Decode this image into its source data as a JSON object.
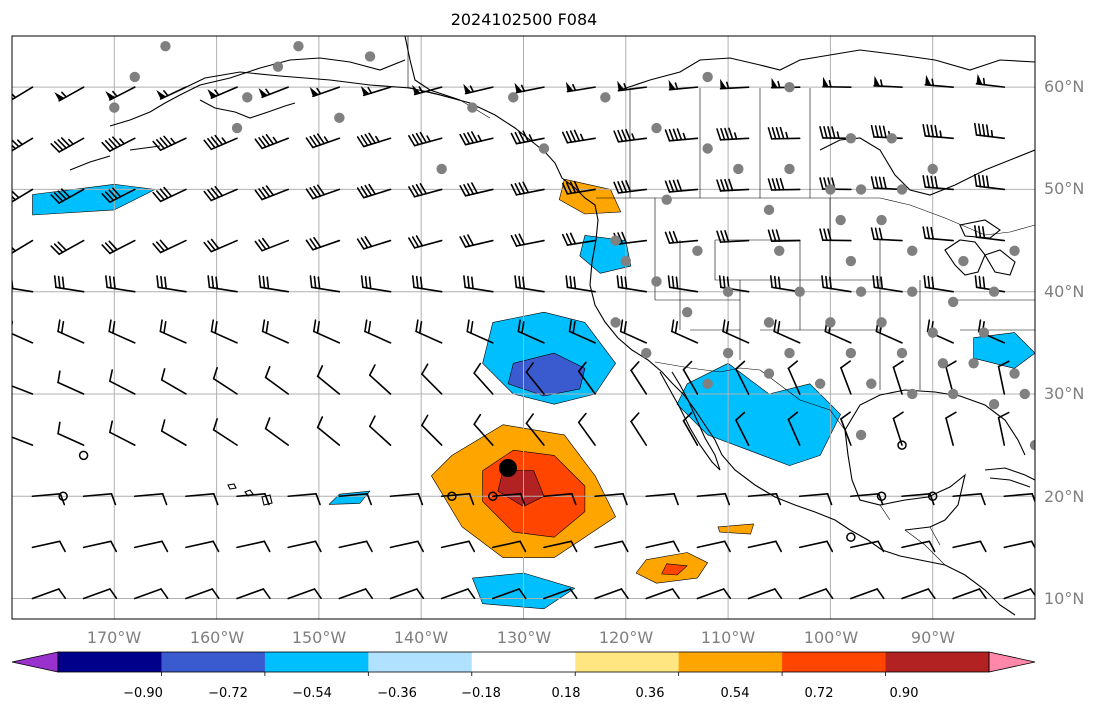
{
  "title": "2024102500 F084",
  "map": {
    "lon_range": [
      -180,
      -80
    ],
    "lat_range": [
      8,
      65
    ],
    "longitude_labels": [
      "170°W",
      "160°W",
      "150°W",
      "140°W",
      "130°W",
      "120°W",
      "110°W",
      "100°W",
      "90°W"
    ],
    "longitude_values": [
      -170,
      -160,
      -150,
      -140,
      -130,
      -120,
      -110,
      -100,
      -90
    ],
    "latitude_labels": [
      "10°N",
      "20°N",
      "30°N",
      "40°N",
      "50°N",
      "60°N"
    ],
    "latitude_values": [
      10,
      20,
      30,
      40,
      50,
      60
    ],
    "gridlines": true,
    "latitude_label_side": "right",
    "longitude_label_side": "bottom"
  },
  "colorbar": {
    "orientation": "horizontal",
    "extend": "both",
    "levels": [
      -0.9,
      -0.72,
      -0.54,
      -0.36,
      -0.18,
      0.18,
      0.36,
      0.54,
      0.72,
      0.9
    ],
    "tick_labels": [
      "−0.90",
      "−0.72",
      "−0.54",
      "−0.36",
      "−0.18",
      "0.18",
      "0.36",
      "0.54",
      "0.72",
      "0.90"
    ],
    "colors": [
      "#9932cc",
      "#00008b",
      "#3a5bd0",
      "#00bfff",
      "#b0e2ff",
      "#ffffff",
      "#ffe680",
      "#ffa500",
      "#ff4500",
      "#b22222",
      "#ff88aa"
    ]
  },
  "chart_data": {
    "type": "heatmap",
    "title": "2024102500 F084",
    "filled_regions": [
      {
        "level": 0.36,
        "lon": [
          -137,
          -132,
          -126,
          -123,
          -121,
          -124,
          -127,
          -132,
          -136,
          -139
        ],
        "lat": [
          24,
          27,
          26,
          22,
          18,
          16,
          14,
          14,
          17,
          22
        ]
      },
      {
        "level": 0.54,
        "lon": [
          -134,
          -131,
          -127,
          -124,
          -124,
          -127,
          -131,
          -134
        ],
        "lat": [
          22.5,
          24.5,
          24,
          21,
          18.5,
          16,
          16.5,
          19.5
        ]
      },
      {
        "level": 0.72,
        "lon": [
          -132,
          -129,
          -128,
          -130,
          -132.5
        ],
        "lat": [
          22.5,
          22.5,
          20,
          19,
          20.5
        ]
      },
      {
        "level": 0.36,
        "lon": [
          -118,
          -114,
          -112,
          -113,
          -117,
          -119
        ],
        "lat": [
          13.8,
          14.5,
          13.5,
          12,
          11.5,
          12.5
        ]
      },
      {
        "level": 0.54,
        "lon": [
          -116,
          -114,
          -115,
          -116.5
        ],
        "lat": [
          13.4,
          13.2,
          12.3,
          12.4
        ]
      },
      {
        "level": 0.36,
        "lon": [
          -126,
          -121.5,
          -120.5,
          -124,
          -126.5
        ],
        "lat": [
          51,
          50,
          47.8,
          47.6,
          49
        ]
      },
      {
        "level": 0.36,
        "lon": [
          -111,
          -107.5,
          -107.8,
          -110.8
        ],
        "lat": [
          17,
          17.3,
          16.3,
          16.5
        ]
      },
      {
        "level": -0.36,
        "lon": [
          -133,
          -128,
          -124,
          -121,
          -123,
          -127,
          -131,
          -134
        ],
        "lat": [
          37,
          38,
          37,
          33,
          30,
          29,
          30,
          33
        ]
      },
      {
        "level": -0.54,
        "lon": [
          -131,
          -127,
          -124,
          -124.5,
          -128,
          -131.5
        ],
        "lat": [
          33,
          34,
          32.5,
          30.5,
          29.8,
          31
        ]
      },
      {
        "level": -0.36,
        "lon": [
          -124,
          -120,
          -119.5,
          -122.5,
          -124.5
        ],
        "lat": [
          45.5,
          45,
          42.5,
          41.8,
          43.5
        ]
      },
      {
        "level": -0.36,
        "lon": [
          -114,
          -110,
          -106,
          -102,
          -99,
          -101,
          -104,
          -108,
          -112,
          -115
        ],
        "lat": [
          31,
          33,
          30,
          31,
          28,
          24,
          23,
          24.5,
          26,
          29
        ]
      },
      {
        "level": -0.36,
        "lon": [
          -178,
          -170,
          -166,
          -170,
          -178
        ],
        "lat": [
          49.5,
          50.5,
          50,
          48,
          47.5
        ]
      },
      {
        "level": -0.36,
        "lon": [
          -135,
          -130,
          -125,
          -128,
          -134
        ],
        "lat": [
          12,
          12.5,
          11,
          9,
          9.5
        ]
      },
      {
        "level": -0.36,
        "lon": [
          -86,
          -82,
          -80,
          -82,
          -86
        ],
        "lat": [
          35.5,
          36,
          34,
          32.5,
          33.5
        ]
      },
      {
        "level": -0.36,
        "lon": [
          -148,
          -145,
          -146,
          -149
        ],
        "lat": [
          20.2,
          20.5,
          19.3,
          19.2
        ]
      }
    ],
    "wind_barbs_present": true,
    "stations_present": true
  }
}
